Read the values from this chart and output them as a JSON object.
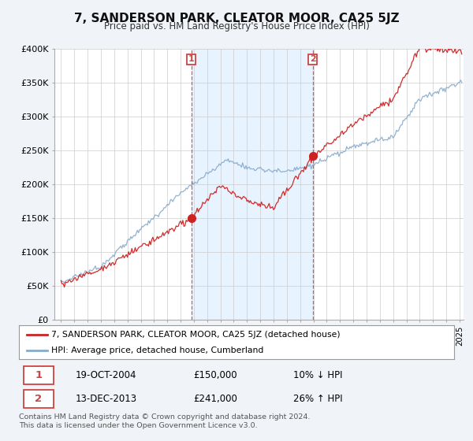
{
  "title": "7, SANDERSON PARK, CLEATOR MOOR, CA25 5JZ",
  "subtitle": "Price paid vs. HM Land Registry's House Price Index (HPI)",
  "ylim": [
    0,
    400000
  ],
  "yticks": [
    0,
    50000,
    100000,
    150000,
    200000,
    250000,
    300000,
    350000,
    400000
  ],
  "ytick_labels": [
    "£0",
    "£50K",
    "£100K",
    "£150K",
    "£200K",
    "£250K",
    "£300K",
    "£350K",
    "£400K"
  ],
  "xlim_start": 1994.5,
  "xlim_end": 2025.3,
  "vline1_x": 2004.8,
  "vline2_x": 2013.95,
  "ann1_y": 150000,
  "ann2_y": 241000,
  "ann1_label": "1",
  "ann2_label": "2",
  "ann1_date": "19-OCT-2004",
  "ann1_price": "£150,000",
  "ann1_hpi": "10% ↓ HPI",
  "ann2_date": "13-DEC-2013",
  "ann2_price": "£241,000",
  "ann2_hpi": "26% ↑ HPI",
  "legend_line1": "7, SANDERSON PARK, CLEATOR MOOR, CA25 5JZ (detached house)",
  "legend_line2": "HPI: Average price, detached house, Cumberland",
  "footer": "Contains HM Land Registry data © Crown copyright and database right 2024.\nThis data is licensed under the Open Government Licence v3.0.",
  "line_color_red": "#cc2222",
  "line_color_blue": "#88aacc",
  "shade_color": "#ddeeff",
  "bg_color": "#f0f4f8",
  "plot_bg": "#ffffff",
  "grid_color": "#cccccc",
  "vline_color": "#cc4444"
}
